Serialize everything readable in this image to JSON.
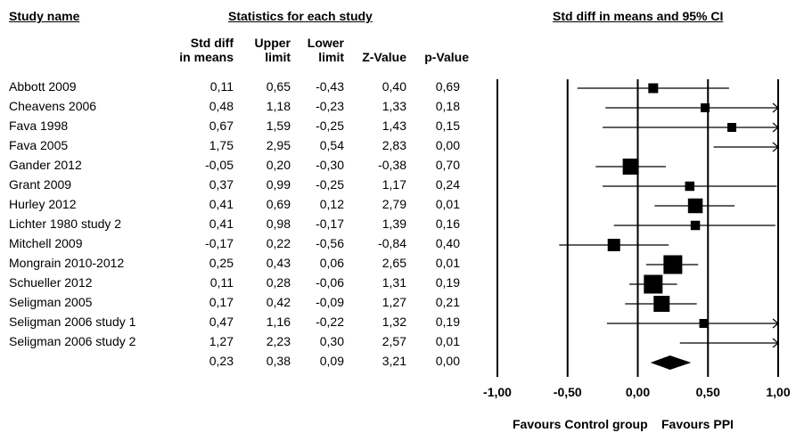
{
  "headers": {
    "study_name": "Study name",
    "statistics": "Statistics for each study",
    "ci_title": "Std diff in means and 95% CI",
    "col_std_diff_1": "Std diff",
    "col_std_diff_2": "in means",
    "col_upper_1": "Upper",
    "col_upper_2": "limit",
    "col_lower_1": "Lower",
    "col_lower_2": "limit",
    "col_z": "Z-Value",
    "col_p": "p-Value"
  },
  "footer": {
    "left": "Favours Control group",
    "right": "Favours PPI"
  },
  "chart_data": {
    "type": "forest",
    "title": "Std diff in means and 95% CI",
    "xlim": [
      -1.0,
      1.0
    ],
    "ticks": [
      -1.0,
      -0.5,
      0.0,
      0.5,
      1.0
    ],
    "tick_labels": [
      "-1,00",
      "-0,50",
      "0,00",
      "0,50",
      "1,00"
    ],
    "studies": [
      {
        "name": "Abbott 2009",
        "std_diff": 0.11,
        "upper": 0.65,
        "lower": -0.43,
        "z": 0.4,
        "p": 0.69,
        "std_diff_t": "0,11",
        "upper_t": "0,65",
        "lower_t": "-0,43",
        "z_t": "0,40",
        "p_t": "0,69",
        "weight": 0.3
      },
      {
        "name": "Cheavens 2006",
        "std_diff": 0.48,
        "upper": 1.18,
        "lower": -0.23,
        "z": 1.33,
        "p": 0.18,
        "std_diff_t": "0,48",
        "upper_t": "1,18",
        "lower_t": "-0,23",
        "z_t": "1,33",
        "p_t": "0,18",
        "weight": 0.2
      },
      {
        "name": "Fava 1998",
        "std_diff": 0.67,
        "upper": 1.59,
        "lower": -0.25,
        "z": 1.43,
        "p": 0.15,
        "std_diff_t": "0,67",
        "upper_t": "1,59",
        "lower_t": "-0,25",
        "z_t": "1,43",
        "p_t": "0,15",
        "weight": 0.2
      },
      {
        "name": "Fava 2005",
        "std_diff": 1.75,
        "upper": 2.95,
        "lower": 0.54,
        "z": 2.83,
        "p": 0.0,
        "std_diff_t": "1,75",
        "upper_t": "2,95",
        "lower_t": "0,54",
        "z_t": "2,83",
        "p_t": "0,00",
        "weight": 0.15
      },
      {
        "name": "Gander 2012",
        "std_diff": -0.05,
        "upper": 0.2,
        "lower": -0.3,
        "z": -0.38,
        "p": 0.7,
        "std_diff_t": "-0,05",
        "upper_t": "0,20",
        "lower_t": "-0,30",
        "z_t": "-0,38",
        "p_t": "0,70",
        "weight": 1.0
      },
      {
        "name": "Grant 2009",
        "std_diff": 0.37,
        "upper": 0.99,
        "lower": -0.25,
        "z": 1.17,
        "p": 0.24,
        "std_diff_t": "0,37",
        "upper_t": "0,99",
        "lower_t": "-0,25",
        "z_t": "1,17",
        "p_t": "0,24",
        "weight": 0.25
      },
      {
        "name": "Hurley 2012",
        "std_diff": 0.41,
        "upper": 0.69,
        "lower": 0.12,
        "z": 2.79,
        "p": 0.01,
        "std_diff_t": "0,41",
        "upper_t": "0,69",
        "lower_t": "0,12",
        "z_t": "2,79",
        "p_t": "0,01",
        "weight": 0.85
      },
      {
        "name": "Lichter 1980 study 2",
        "std_diff": 0.41,
        "upper": 0.98,
        "lower": -0.17,
        "z": 1.39,
        "p": 0.16,
        "std_diff_t": "0,41",
        "upper_t": "0,98",
        "lower_t": "-0,17",
        "z_t": "1,39",
        "p_t": "0,16",
        "weight": 0.25
      },
      {
        "name": "Mitchell 2009",
        "std_diff": -0.17,
        "upper": 0.22,
        "lower": -0.56,
        "z": -0.84,
        "p": 0.4,
        "std_diff_t": "-0,17",
        "upper_t": "0,22",
        "lower_t": "-0,56",
        "z_t": "-0,84",
        "p_t": "0,40",
        "weight": 0.6
      },
      {
        "name": "Mongrain 2010-2012",
        "std_diff": 0.25,
        "upper": 0.43,
        "lower": 0.06,
        "z": 2.65,
        "p": 0.01,
        "std_diff_t": "0,25",
        "upper_t": "0,43",
        "lower_t": "0,06",
        "z_t": "2,65",
        "p_t": "0,01",
        "weight": 1.3
      },
      {
        "name": "Schueller 2012",
        "std_diff": 0.11,
        "upper": 0.28,
        "lower": -0.06,
        "z": 1.31,
        "p": 0.19,
        "std_diff_t": "0,11",
        "upper_t": "0,28",
        "lower_t": "-0,06",
        "z_t": "1,31",
        "p_t": "0,19",
        "weight": 1.3
      },
      {
        "name": "Seligman 2005",
        "std_diff": 0.17,
        "upper": 0.42,
        "lower": -0.09,
        "z": 1.27,
        "p": 0.21,
        "std_diff_t": "0,17",
        "upper_t": "0,42",
        "lower_t": "-0,09",
        "z_t": "1,27",
        "p_t": "0,21",
        "weight": 1.0
      },
      {
        "name": "Seligman 2006 study 1",
        "std_diff": 0.47,
        "upper": 1.16,
        "lower": -0.22,
        "z": 1.32,
        "p": 0.19,
        "std_diff_t": "0,47",
        "upper_t": "1,16",
        "lower_t": "-0,22",
        "z_t": "1,32",
        "p_t": "0,19",
        "weight": 0.2
      },
      {
        "name": "Seligman 2006 study 2",
        "std_diff": 1.27,
        "upper": 2.23,
        "lower": 0.3,
        "z": 2.57,
        "p": 0.01,
        "std_diff_t": "1,27",
        "upper_t": "2,23",
        "lower_t": "0,30",
        "z_t": "2,57",
        "p_t": "0,01",
        "weight": 0.15
      }
    ],
    "summary": {
      "std_diff": 0.23,
      "upper": 0.38,
      "lower": 0.09,
      "z": 3.21,
      "p": 0.0,
      "std_diff_t": "0,23",
      "upper_t": "0,38",
      "lower_t": "0,09",
      "z_t": "3,21",
      "p_t": "0,00"
    }
  }
}
